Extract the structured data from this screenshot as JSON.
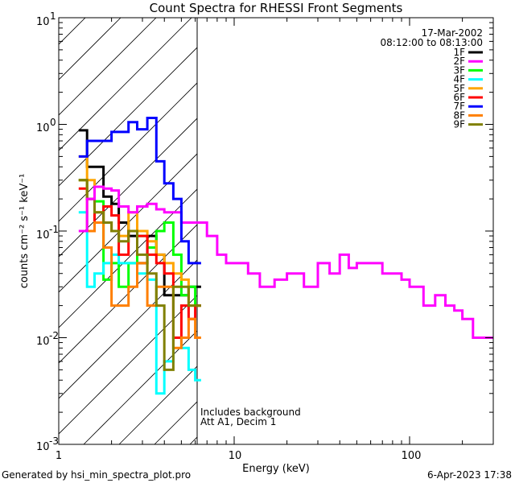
{
  "chart_data": {
    "type": "line",
    "title": "Count Spectra for RHESSI Front Segments",
    "xlabel": "Energy (keV)",
    "ylabel": "counts cm⁻² s⁻¹ keV⁻¹",
    "xscale": "log",
    "yscale": "log",
    "xlim": [
      1,
      300
    ],
    "ylim": [
      0.001,
      10
    ],
    "x_tick_labels": [
      {
        "value": 1,
        "label": "1"
      },
      {
        "value": 10,
        "label": "10"
      },
      {
        "value": 100,
        "label": "100"
      }
    ],
    "y_tick_labels": [
      {
        "value": 10,
        "base": "10",
        "exp": "1"
      },
      {
        "value": 1,
        "base": "10",
        "exp": "0"
      },
      {
        "value": 0.1,
        "base": "10",
        "exp": "-1"
      },
      {
        "value": 0.01,
        "base": "10",
        "exp": "-2"
      },
      {
        "value": 0.001,
        "base": "10",
        "exp": "-3"
      }
    ],
    "date": "17-Mar-2002",
    "time_range": "08:12:00 to 08:13:00",
    "annotation_lines": [
      "Includes background",
      "Att A1, Decim 1"
    ],
    "excluded_region": {
      "from": 1,
      "to": 6,
      "style": "hatched"
    },
    "series": [
      {
        "name": "1F",
        "color": "#000000",
        "x": [
          1.3,
          1.45,
          1.6,
          1.8,
          2.0,
          2.2,
          2.5,
          2.8,
          3.2,
          3.6,
          4.0,
          4.5,
          5.0,
          5.5,
          6.0
        ],
        "y": [
          0.88,
          0.4,
          0.4,
          0.21,
          0.18,
          0.12,
          0.09,
          0.05,
          0.09,
          0.06,
          0.025,
          0.025,
          0.025,
          0.03,
          0.03
        ]
      },
      {
        "name": "2F",
        "color": "#ff00ff",
        "x": [
          1.3,
          1.45,
          1.6,
          1.8,
          2.0,
          2.2,
          2.5,
          2.8,
          3.2,
          3.6,
          4.0,
          4.5,
          5.0,
          5.5,
          6.0,
          7.0,
          8.0,
          9.0,
          10,
          12,
          14,
          17,
          20,
          25,
          30,
          35,
          40,
          45,
          50,
          60,
          70,
          80,
          90,
          100,
          120,
          140,
          160,
          180,
          200,
          230,
          260,
          300
        ],
        "y": [
          0.1,
          0.2,
          0.26,
          0.25,
          0.24,
          0.17,
          0.15,
          0.17,
          0.18,
          0.16,
          0.15,
          0.15,
          0.12,
          0.12,
          0.12,
          0.09,
          0.06,
          0.05,
          0.05,
          0.04,
          0.03,
          0.035,
          0.04,
          0.03,
          0.05,
          0.04,
          0.06,
          0.045,
          0.05,
          0.05,
          0.04,
          0.04,
          0.035,
          0.03,
          0.02,
          0.025,
          0.02,
          0.018,
          0.015,
          0.01,
          0.01,
          0.01
        ]
      },
      {
        "name": "3F",
        "color": "#00ff00",
        "x": [
          1.3,
          1.45,
          1.6,
          1.8,
          2.0,
          2.2,
          2.5,
          2.8,
          3.2,
          3.6,
          4.0,
          4.5,
          5.0,
          5.5,
          6.0
        ],
        "y": [
          0.3,
          0.2,
          0.19,
          0.035,
          0.05,
          0.03,
          0.05,
          0.09,
          0.07,
          0.1,
          0.12,
          0.06,
          0.025,
          0.03,
          0.02
        ]
      },
      {
        "name": "4F",
        "color": "#00ffff",
        "x": [
          1.3,
          1.45,
          1.6,
          1.8,
          2.0,
          2.2,
          2.5,
          2.8,
          3.2,
          3.6,
          4.0,
          4.5,
          5.0,
          5.5,
          6.0
        ],
        "y": [
          0.15,
          0.03,
          0.04,
          0.05,
          0.06,
          0.05,
          0.05,
          0.04,
          0.035,
          0.003,
          0.006,
          0.01,
          0.008,
          0.005,
          0.004
        ]
      },
      {
        "name": "5F",
        "color": "#ffa500",
        "x": [
          1.3,
          1.45,
          1.6,
          1.8,
          2.0,
          2.2,
          2.5,
          2.8,
          3.2,
          3.6,
          4.0,
          4.5,
          5.0,
          5.5,
          6.0
        ],
        "y": [
          0.5,
          0.3,
          0.15,
          0.12,
          0.1,
          0.09,
          0.15,
          0.1,
          0.08,
          0.06,
          0.05,
          0.04,
          0.035,
          0.02,
          0.02
        ]
      },
      {
        "name": "6F",
        "color": "#ff0000",
        "x": [
          1.3,
          1.45,
          1.6,
          1.8,
          2.0,
          2.2,
          2.5,
          2.8,
          3.2,
          3.6,
          4.0,
          4.5,
          5.0,
          5.5,
          6.0
        ],
        "y": [
          0.25,
          0.2,
          0.12,
          0.17,
          0.14,
          0.06,
          0.1,
          0.09,
          0.06,
          0.05,
          0.04,
          0.01,
          0.02,
          0.015,
          0.02
        ]
      },
      {
        "name": "7F",
        "color": "#0000ff",
        "x": [
          1.3,
          1.45,
          1.6,
          1.8,
          2.0,
          2.2,
          2.5,
          2.8,
          3.2,
          3.6,
          4.0,
          4.5,
          5.0,
          5.5,
          6.0
        ],
        "y": [
          0.5,
          0.7,
          0.7,
          0.7,
          0.85,
          0.85,
          1.05,
          0.9,
          1.15,
          0.45,
          0.28,
          0.2,
          0.08,
          0.05,
          0.05
        ]
      },
      {
        "name": "8F",
        "color": "#ff7f00",
        "x": [
          1.3,
          1.45,
          1.6,
          1.8,
          2.0,
          2.2,
          2.5,
          2.8,
          3.2,
          3.6,
          4.0,
          4.5,
          5.0,
          5.5,
          6.0
        ],
        "y": [
          0.3,
          0.1,
          0.12,
          0.07,
          0.02,
          0.02,
          0.03,
          0.05,
          0.02,
          0.03,
          0.03,
          0.008,
          0.01,
          0.015,
          0.01
        ]
      },
      {
        "name": "9F",
        "color": "#808000",
        "x": [
          1.3,
          1.45,
          1.6,
          1.8,
          2.0,
          2.2,
          2.5,
          2.8,
          3.2,
          3.6,
          4.0,
          4.5,
          5.0,
          5.5,
          6.0
        ],
        "y": [
          0.3,
          0.2,
          0.15,
          0.12,
          0.1,
          0.08,
          0.1,
          0.06,
          0.04,
          0.02,
          0.005,
          0.03,
          0.03,
          0.02,
          0.02
        ]
      }
    ]
  },
  "footer": {
    "generated_by": "Generated by hsi_min_spectra_plot.pro",
    "timestamp": "6-Apr-2023 17:38"
  }
}
